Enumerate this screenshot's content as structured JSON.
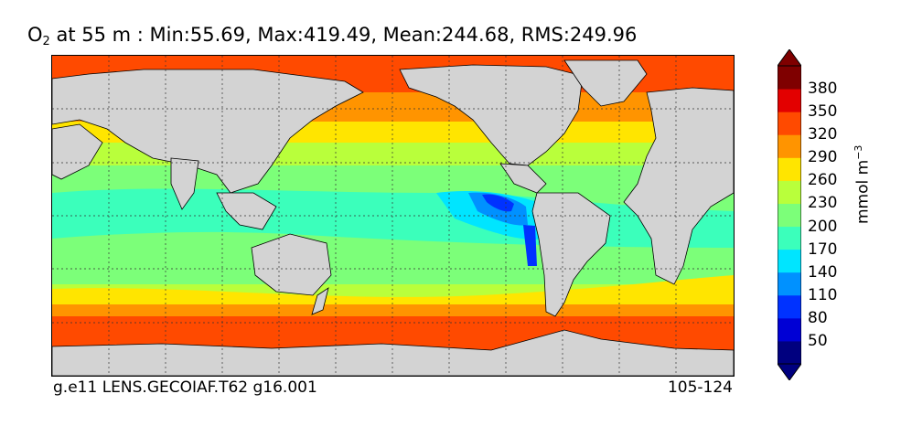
{
  "title": {
    "species_base": "O",
    "species_sub": "2",
    "text": " at 55 m : Min:55.69, Max:419.49, Mean:244.68, RMS:249.96"
  },
  "footer": {
    "left": "g.e11 LENS.GECOIAF.T62 g16.001",
    "right": "105-124"
  },
  "colorbar": {
    "unit_base": "mmol m",
    "unit_exp": "−3",
    "ticks": [
      "380",
      "350",
      "320",
      "290",
      "260",
      "230",
      "200",
      "170",
      "140",
      "110",
      "80",
      "50"
    ],
    "colors_low_to_high": [
      "#00007f",
      "#0000d5",
      "#0032ff",
      "#0091ff",
      "#00e5ff",
      "#3bffbb",
      "#7cff79",
      "#b9ff3b",
      "#ffe500",
      "#ff9400",
      "#ff4a00",
      "#e30000",
      "#7f0000"
    ]
  },
  "map": {
    "land_color": "#d3d3d3",
    "grid": "dotted"
  }
}
